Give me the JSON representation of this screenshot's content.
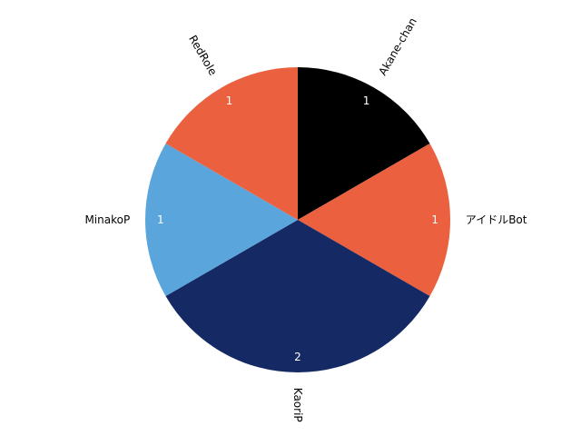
{
  "chart_data": {
    "type": "pie",
    "start_angle_deg": 90,
    "direction": "clockwise",
    "labels": [
      "Akane-chan",
      "アイドルBot",
      "KaoriP",
      "MinakoP",
      "RedRole"
    ],
    "values": [
      1,
      1,
      2,
      1,
      1
    ],
    "value_labels": [
      "1",
      "1",
      "2",
      "1",
      "1"
    ],
    "colors": [
      "#000000",
      "#eb6140",
      "#152a65",
      "#5aa6dc",
      "#eb6140"
    ],
    "label_rotation": "radial",
    "legend": "none"
  }
}
